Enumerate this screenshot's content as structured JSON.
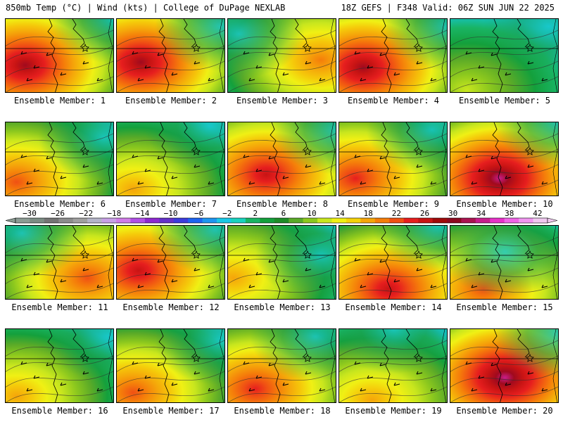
{
  "header": {
    "left": "850mb Temp (°C) | Wind (kts) | College of DuPage NEXLAB",
    "right": "18Z GEFS | F348 Valid: 06Z SUN JUN 22 2025"
  },
  "colorbar": {
    "labels": [
      "−30",
      "−26",
      "−22",
      "−18",
      "−14",
      "−10",
      "−6",
      "−2",
      "2",
      "6",
      "10",
      "14",
      "18",
      "22",
      "26",
      "30",
      "34",
      "38",
      "42"
    ],
    "colors": [
      "#8c9c94",
      "#7c8c84",
      "#747474",
      "#8c8c8c",
      "#a0a0a0",
      "#b4b4c8",
      "#c8a0e6",
      "#d07ce8",
      "#b050e6",
      "#8c28d0",
      "#6432c8",
      "#3c3cdc",
      "#1e64f0",
      "#1e96f0",
      "#19c8e6",
      "#19d2be",
      "#19b464",
      "#14a03c",
      "#1e8c28",
      "#5aaa28",
      "#8cc81e",
      "#c8e61e",
      "#f0f014",
      "#f5d20a",
      "#f5a50a",
      "#f57d0a",
      "#f05014",
      "#e61e1e",
      "#c81414",
      "#a00a0a",
      "#8c0a1e",
      "#aa1450",
      "#c81e8c",
      "#e632c8",
      "#f064e6",
      "#f096f0",
      "#f0c8f0"
    ]
  },
  "members": [
    {
      "label": "Ensemble Member: 1",
      "warm": [
        0.18,
        0.62
      ],
      "cool": [
        1.0,
        0.0
      ],
      "intensity": 0.95
    },
    {
      "label": "Ensemble Member: 2",
      "warm": [
        0.22,
        0.58
      ],
      "cool": [
        0.95,
        0.1
      ],
      "intensity": 0.9
    },
    {
      "label": "Ensemble Member: 3",
      "warm": [
        0.85,
        0.55
      ],
      "cool": [
        0.1,
        0.2
      ],
      "intensity": 0.65
    },
    {
      "label": "Ensemble Member: 4",
      "warm": [
        0.22,
        0.65
      ],
      "cool": [
        1.0,
        0.1
      ],
      "intensity": 0.9
    },
    {
      "label": "Ensemble Member: 5",
      "warm": [
        0.15,
        0.95
      ],
      "cool": [
        0.9,
        0.1
      ],
      "intensity": 0.35
    },
    {
      "label": "Ensemble Member: 6",
      "warm": [
        0.1,
        0.8
      ],
      "cool": [
        0.9,
        0.2
      ],
      "intensity": 0.7
    },
    {
      "label": "Ensemble Member: 7",
      "warm": [
        0.15,
        0.9
      ],
      "cool": [
        0.85,
        0.05
      ],
      "intensity": 0.55
    },
    {
      "label": "Ensemble Member: 8",
      "warm": [
        0.35,
        0.7
      ],
      "cool": [
        1.0,
        0.1
      ],
      "intensity": 0.85
    },
    {
      "label": "Ensemble Member: 9",
      "warm": [
        0.15,
        0.75
      ],
      "cool": [
        0.85,
        0.1
      ],
      "intensity": 0.8
    },
    {
      "label": "Ensemble Member: 10",
      "warm": [
        0.45,
        0.75
      ],
      "cool": [
        1.0,
        0.0
      ],
      "intensity": 1.0
    },
    {
      "label": "Ensemble Member: 11",
      "warm": [
        0.75,
        0.7
      ],
      "cool": [
        0.15,
        0.1
      ],
      "intensity": 0.7
    },
    {
      "label": "Ensemble Member: 12",
      "warm": [
        0.2,
        0.6
      ],
      "cool": [
        0.9,
        0.05
      ],
      "intensity": 0.85
    },
    {
      "label": "Ensemble Member: 13",
      "warm": [
        0.05,
        0.7
      ],
      "cool": [
        0.85,
        0.4
      ],
      "intensity": 0.55
    },
    {
      "label": "Ensemble Member: 14",
      "warm": [
        0.45,
        0.85
      ],
      "cool": [
        0.9,
        0.0
      ],
      "intensity": 0.85
    },
    {
      "label": "Ensemble Member: 15",
      "warm": [
        0.3,
        0.85
      ],
      "cool": [
        0.5,
        0.35
      ],
      "intensity": 0.7
    },
    {
      "label": "Ensemble Member: 16",
      "warm": [
        0.1,
        0.9
      ],
      "cool": [
        0.95,
        0.1
      ],
      "intensity": 0.6
    },
    {
      "label": "Ensemble Member: 17",
      "warm": [
        0.15,
        0.85
      ],
      "cool": [
        0.95,
        0.15
      ],
      "intensity": 0.7
    },
    {
      "label": "Ensemble Member: 18",
      "warm": [
        0.25,
        0.8
      ],
      "cool": [
        0.8,
        0.1
      ],
      "intensity": 0.75
    },
    {
      "label": "Ensemble Member: 19",
      "warm": [
        0.3,
        0.95
      ],
      "cool": [
        0.5,
        0.0
      ],
      "intensity": 0.55
    },
    {
      "label": "Ensemble Member: 20",
      "warm": [
        0.5,
        0.65
      ],
      "cool": [
        1.0,
        0.05
      ],
      "intensity": 1.0
    }
  ]
}
